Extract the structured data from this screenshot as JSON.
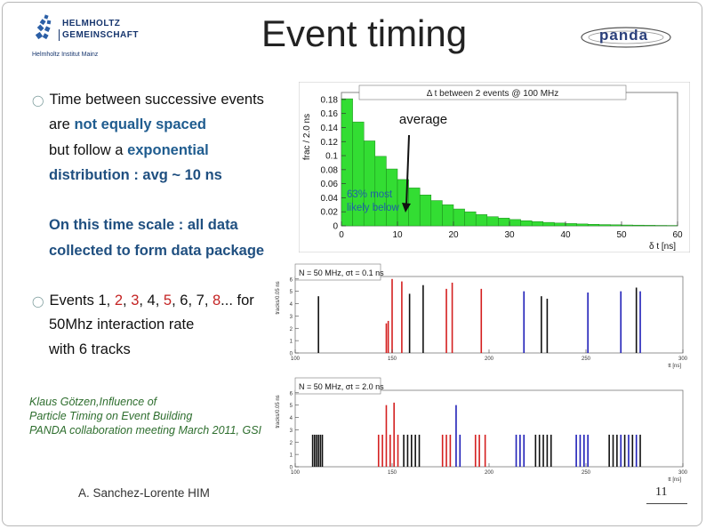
{
  "slide": {
    "title": "Event timing",
    "page_number": "11",
    "footer": "A. Sanchez-Lorente HIM"
  },
  "logos": {
    "left_line1": "HELMHOLTZ",
    "left_line2": "GEMEINSCHAFT",
    "left_sub": "Helmholtz Institut Mainz",
    "right": "panda"
  },
  "bullets": {
    "b1": {
      "line1": "Time between successive events",
      "line2_pre": "are ",
      "line2_emph": "not equally spaced",
      "line3_pre": "but follow a ",
      "line3_emph": "exponential",
      "line4": "distribution : avg ~ 10 ns"
    },
    "b1_note": {
      "line1": "On this time scale : all data",
      "line2": "collected to form data package"
    },
    "b2": {
      "pre": "Events ",
      "n1": "1",
      "n2": "2",
      "n3": "3",
      "n4": "4",
      "n5": "5",
      "n6": "6",
      "n7": "7",
      "n8": "8",
      "post": "... for",
      "line2": "50Mhz interaction rate",
      "line3": "with 6 tracks"
    }
  },
  "credit": {
    "line1": "Klaus Götzen,Influence of",
    "line2": "Particle Timing on Event Building",
    "line3": "PANDA collaboration meeting March 2011, GSI"
  },
  "chart_data": [
    {
      "type": "bar",
      "title": "Δ t between 2 events @ 100 MHz",
      "xlabel": "δ t [ns]",
      "ylabel": "frac / 2.0 ns",
      "xlim": [
        0,
        60
      ],
      "ylim": [
        0,
        0.19
      ],
      "xticks": [
        "0",
        "10",
        "20",
        "30",
        "40",
        "50",
        "60"
      ],
      "yticks": [
        "0",
        "0.02",
        "0.04",
        "0.06",
        "0.08",
        "0.1",
        "0.12",
        "0.14",
        "0.16",
        "0.18"
      ],
      "bin_width": 2,
      "values": [
        0.181,
        0.148,
        0.121,
        0.099,
        0.081,
        0.066,
        0.054,
        0.044,
        0.036,
        0.03,
        0.024,
        0.02,
        0.016,
        0.013,
        0.011,
        0.009,
        0.0073,
        0.006,
        0.0049,
        0.004,
        0.0033,
        0.0027,
        0.0022,
        0.0018,
        0.0015,
        0.0012,
        0.001,
        0.0008,
        0.0006,
        0.0005
      ],
      "annotations": {
        "average": "average",
        "shade_label_1": "63% most",
        "shade_label_2": "likely below"
      },
      "fill_color": "#33dd33"
    },
    {
      "type": "bar",
      "title": "N = 50 MHz, σt = 0.1 ns",
      "xlabel": "tt [ns]",
      "ylabel": "tracks/0.05 ns",
      "xlim": [
        100,
        300
      ],
      "xticks": [
        "100",
        "150",
        "200",
        "250",
        "300"
      ],
      "yticks": [
        "0",
        "1",
        "2",
        "3",
        "4",
        "5",
        "6"
      ],
      "pulses": [
        {
          "t": 112,
          "h": 4.6,
          "c": "black"
        },
        {
          "t": 147,
          "h": 2.4,
          "c": "red"
        },
        {
          "t": 148,
          "h": 2.6,
          "c": "red"
        },
        {
          "t": 150,
          "h": 6.0,
          "c": "red"
        },
        {
          "t": 155,
          "h": 5.8,
          "c": "red"
        },
        {
          "t": 159,
          "h": 4.8,
          "c": "black"
        },
        {
          "t": 166,
          "h": 5.5,
          "c": "black"
        },
        {
          "t": 178,
          "h": 5.2,
          "c": "red"
        },
        {
          "t": 181,
          "h": 5.7,
          "c": "red"
        },
        {
          "t": 196,
          "h": 5.2,
          "c": "red"
        },
        {
          "t": 218,
          "h": 5.0,
          "c": "blue"
        },
        {
          "t": 227,
          "h": 4.6,
          "c": "black"
        },
        {
          "t": 230,
          "h": 4.4,
          "c": "black"
        },
        {
          "t": 251,
          "h": 4.9,
          "c": "blue"
        },
        {
          "t": 268,
          "h": 5.0,
          "c": "blue"
        },
        {
          "t": 276,
          "h": 5.3,
          "c": "black"
        },
        {
          "t": 278,
          "h": 5.0,
          "c": "blue"
        }
      ]
    },
    {
      "type": "bar",
      "title": "N = 50 MHz, σt = 2.0 ns",
      "xlabel": "tt [ns]",
      "ylabel": "tracks/0.05 ns",
      "xlim": [
        100,
        300
      ],
      "xticks": [
        "100",
        "150",
        "200",
        "250",
        "300"
      ],
      "yticks": [
        "0",
        "1",
        "2",
        "3",
        "4",
        "5",
        "6"
      ],
      "pulses": [
        {
          "t": 109,
          "h": 2.6,
          "c": "black"
        },
        {
          "t": 110,
          "h": 2.6,
          "c": "black"
        },
        {
          "t": 111,
          "h": 2.6,
          "c": "black"
        },
        {
          "t": 112,
          "h": 2.6,
          "c": "black"
        },
        {
          "t": 113,
          "h": 2.6,
          "c": "black"
        },
        {
          "t": 114,
          "h": 2.6,
          "c": "black"
        },
        {
          "t": 143,
          "h": 2.6,
          "c": "red"
        },
        {
          "t": 145,
          "h": 2.6,
          "c": "red"
        },
        {
          "t": 147,
          "h": 5.0,
          "c": "red"
        },
        {
          "t": 149,
          "h": 2.6,
          "c": "red"
        },
        {
          "t": 151,
          "h": 5.2,
          "c": "red"
        },
        {
          "t": 153,
          "h": 2.6,
          "c": "red"
        },
        {
          "t": 156,
          "h": 2.6,
          "c": "black"
        },
        {
          "t": 158,
          "h": 2.6,
          "c": "black"
        },
        {
          "t": 160,
          "h": 2.6,
          "c": "black"
        },
        {
          "t": 162,
          "h": 2.6,
          "c": "black"
        },
        {
          "t": 164,
          "h": 2.6,
          "c": "black"
        },
        {
          "t": 176,
          "h": 2.6,
          "c": "red"
        },
        {
          "t": 178,
          "h": 2.6,
          "c": "red"
        },
        {
          "t": 180,
          "h": 2.6,
          "c": "red"
        },
        {
          "t": 183,
          "h": 5.0,
          "c": "blue"
        },
        {
          "t": 185,
          "h": 2.6,
          "c": "blue"
        },
        {
          "t": 193,
          "h": 2.6,
          "c": "red"
        },
        {
          "t": 195,
          "h": 2.6,
          "c": "red"
        },
        {
          "t": 198,
          "h": 2.6,
          "c": "red"
        },
        {
          "t": 214,
          "h": 2.6,
          "c": "blue"
        },
        {
          "t": 216,
          "h": 2.6,
          "c": "blue"
        },
        {
          "t": 218,
          "h": 2.6,
          "c": "blue"
        },
        {
          "t": 224,
          "h": 2.6,
          "c": "black"
        },
        {
          "t": 226,
          "h": 2.6,
          "c": "black"
        },
        {
          "t": 228,
          "h": 2.6,
          "c": "black"
        },
        {
          "t": 230,
          "h": 2.6,
          "c": "black"
        },
        {
          "t": 232,
          "h": 2.6,
          "c": "black"
        },
        {
          "t": 245,
          "h": 2.6,
          "c": "blue"
        },
        {
          "t": 247,
          "h": 2.6,
          "c": "blue"
        },
        {
          "t": 249,
          "h": 2.6,
          "c": "blue"
        },
        {
          "t": 251,
          "h": 2.6,
          "c": "blue"
        },
        {
          "t": 262,
          "h": 2.6,
          "c": "black"
        },
        {
          "t": 264,
          "h": 2.6,
          "c": "black"
        },
        {
          "t": 266,
          "h": 2.6,
          "c": "black"
        },
        {
          "t": 268,
          "h": 2.6,
          "c": "blue"
        },
        {
          "t": 270,
          "h": 2.6,
          "c": "black"
        },
        {
          "t": 272,
          "h": 2.6,
          "c": "blue"
        },
        {
          "t": 274,
          "h": 2.6,
          "c": "black"
        },
        {
          "t": 276,
          "h": 2.6,
          "c": "blue"
        },
        {
          "t": 278,
          "h": 2.6,
          "c": "black"
        }
      ]
    }
  ]
}
